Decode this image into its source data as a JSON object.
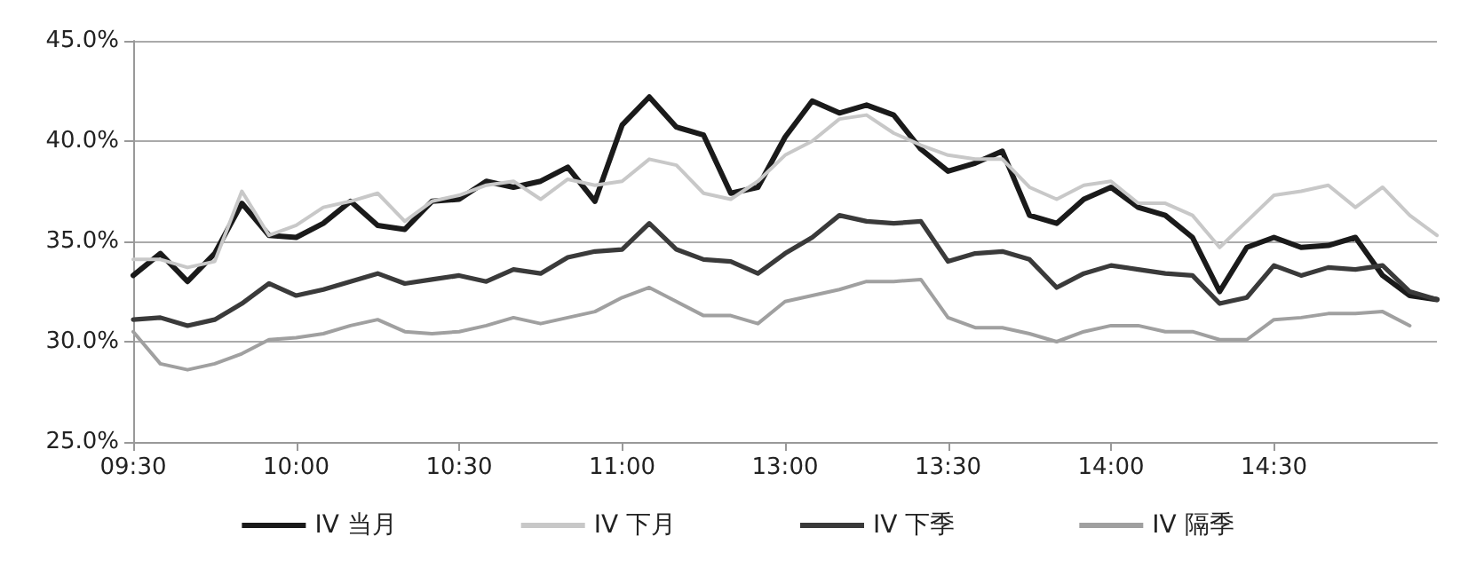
{
  "chart_data": {
    "type": "line",
    "categories": [
      "09:30",
      null,
      null,
      null,
      null,
      null,
      "10:00",
      null,
      null,
      null,
      null,
      null,
      "10:30",
      null,
      null,
      null,
      null,
      null,
      "11:00",
      null,
      null,
      null,
      null,
      null,
      "13:00",
      null,
      null,
      null,
      null,
      null,
      "13:30",
      null,
      null,
      null,
      null,
      null,
      "14:00",
      null,
      null,
      null,
      null,
      null,
      "14:30",
      null,
      null,
      null,
      null,
      null,
      null
    ],
    "series": [
      {
        "name": "IV 当月",
        "color": "#1a1a1a",
        "values": [
          33.3,
          34.4,
          33.0,
          34.4,
          36.9,
          35.3,
          35.2,
          35.9,
          37.0,
          35.8,
          35.6,
          37.0,
          37.1,
          38.0,
          37.7,
          38.0,
          38.7,
          37.0,
          40.8,
          42.2,
          40.7,
          40.3,
          37.4,
          37.7,
          40.2,
          42.0,
          41.4,
          41.8,
          41.3,
          39.6,
          38.5,
          38.9,
          39.5,
          36.3,
          35.9,
          37.1,
          37.7,
          36.7,
          36.3,
          35.2,
          32.5,
          34.7,
          35.2,
          34.7,
          34.8,
          35.2,
          33.3,
          32.3,
          32.1
        ]
      },
      {
        "name": "IV 下月",
        "color": "#c8c8c8",
        "values": [
          34.1,
          34.1,
          33.7,
          34.0,
          37.5,
          35.3,
          35.8,
          36.7,
          37.0,
          37.4,
          36.0,
          37.0,
          37.3,
          37.8,
          38.0,
          37.1,
          38.1,
          37.8,
          38.0,
          39.1,
          38.8,
          37.4,
          37.1,
          38.0,
          39.3,
          40.0,
          41.1,
          41.3,
          40.4,
          39.8,
          39.3,
          39.1,
          39.1,
          37.7,
          37.1,
          37.8,
          38.0,
          36.9,
          36.9,
          36.3,
          34.7,
          36.0,
          37.3,
          37.5,
          37.8,
          36.7,
          37.7,
          36.3,
          35.3
        ]
      },
      {
        "name": "IV 下季",
        "color": "#3a3a3a",
        "values": [
          31.1,
          31.2,
          30.8,
          31.1,
          31.9,
          32.9,
          32.3,
          32.6,
          33.0,
          33.4,
          32.9,
          33.1,
          33.3,
          33.0,
          33.6,
          33.4,
          34.2,
          34.5,
          34.6,
          35.9,
          34.6,
          34.1,
          34.0,
          33.4,
          34.4,
          35.2,
          36.3,
          36.0,
          35.9,
          36.0,
          34.0,
          34.4,
          34.5,
          34.1,
          32.7,
          33.4,
          33.8,
          33.6,
          33.4,
          33.3,
          31.9,
          32.2,
          33.8,
          33.3,
          33.7,
          33.6,
          33.8,
          32.5,
          32.1
        ]
      },
      {
        "name": "IV 隔季",
        "color": "#a0a0a0",
        "values": [
          30.5,
          28.9,
          28.6,
          28.9,
          29.4,
          30.1,
          30.2,
          30.4,
          30.8,
          31.1,
          30.5,
          30.4,
          30.5,
          30.8,
          31.2,
          30.9,
          31.2,
          31.5,
          32.2,
          32.7,
          32.0,
          31.3,
          31.3,
          30.9,
          32.0,
          32.3,
          32.6,
          33.0,
          33.0,
          33.1,
          31.2,
          30.7,
          30.7,
          30.4,
          30.0,
          30.5,
          30.8,
          30.8,
          30.5,
          30.5,
          30.1,
          30.1,
          31.1,
          31.2,
          31.4,
          31.4,
          31.5,
          30.8,
          null
        ]
      }
    ],
    "ylim": [
      25,
      45
    ],
    "yticks": [
      {
        "value": 25,
        "label": "25.0%"
      },
      {
        "value": 30,
        "label": "30.0%"
      },
      {
        "value": 35,
        "label": "35.0%"
      },
      {
        "value": 40,
        "label": "40.0%"
      },
      {
        "value": 45,
        "label": "45.0%"
      }
    ],
    "grid": "y",
    "legend": "bottom",
    "marker": "none",
    "line_style": "solid"
  }
}
